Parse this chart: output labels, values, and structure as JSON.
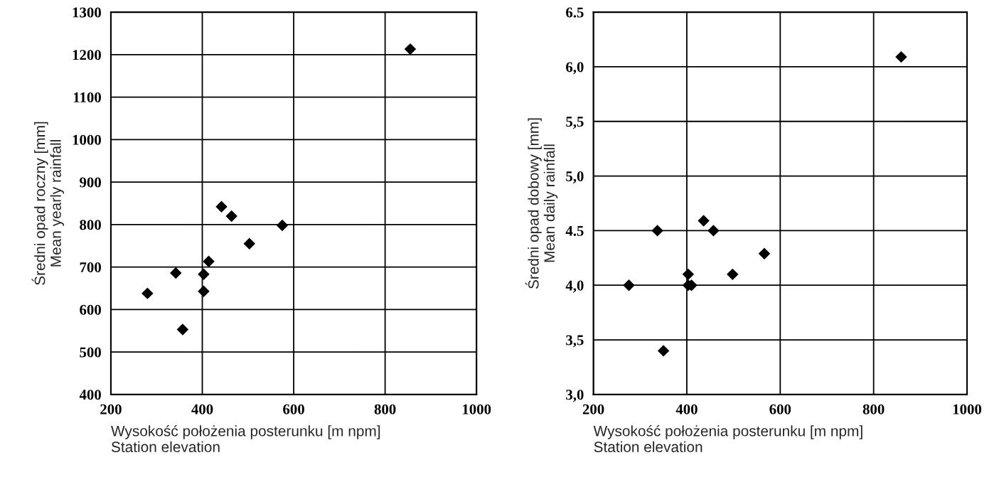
{
  "chart_data": [
    {
      "type": "scatter",
      "xlabel": "Wysokość położenia posterunku [m npm]\nStation elevation",
      "ylabel": "Średni opad roczny [mm]\nMean yearly rainfall",
      "marker": "diamond",
      "grid": true,
      "x": [
        855,
        442,
        464,
        575,
        503,
        414,
        342,
        403,
        280,
        403,
        357
      ],
      "series": [
        {
          "color": "#000000",
          "values": [
            1213,
            842,
            820,
            798,
            755,
            713,
            686,
            683,
            638,
            643,
            553
          ]
        }
      ],
      "xlim": [
        200,
        1000
      ],
      "xticks": [
        200,
        400,
        600,
        800,
        1000
      ],
      "ylim": [
        400,
        1300
      ],
      "yticks": [
        400,
        500,
        600,
        700,
        800,
        900,
        1000,
        1100,
        1200,
        1300
      ]
    },
    {
      "type": "scatter",
      "xlabel": "Wysokość położenia posterunku [m npm]\nStation elevation",
      "ylabel": "Średni opad dobowy [mm]\nMean daily rainfall",
      "marker": "diamond",
      "grid": true,
      "x": [
        859,
        337,
        436,
        457,
        566,
        403,
        498,
        276,
        403,
        410,
        350
      ],
      "series": [
        {
          "color": "#000000",
          "values": [
            6.09,
            4.5,
            4.59,
            4.5,
            4.29,
            4.1,
            4.1,
            4.0,
            4.0,
            4.0,
            3.4
          ]
        }
      ],
      "xlim": [
        200,
        1000
      ],
      "xticks": [
        200,
        400,
        600,
        800,
        1000
      ],
      "ylim": [
        3.0,
        6.5
      ],
      "yticks": [
        {
          "value": 3.0,
          "label": "3,0"
        },
        {
          "value": 3.5,
          "label": "3,5"
        },
        {
          "value": 4.0,
          "label": "4,0"
        },
        {
          "value": 4.5,
          "label": "4.5"
        },
        {
          "value": 5.0,
          "label": "5,0"
        },
        {
          "value": 5.5,
          "label": "5,5"
        },
        {
          "value": 6.0,
          "label": "6,0"
        },
        {
          "value": 6.5,
          "label": "6.5"
        }
      ]
    }
  ]
}
